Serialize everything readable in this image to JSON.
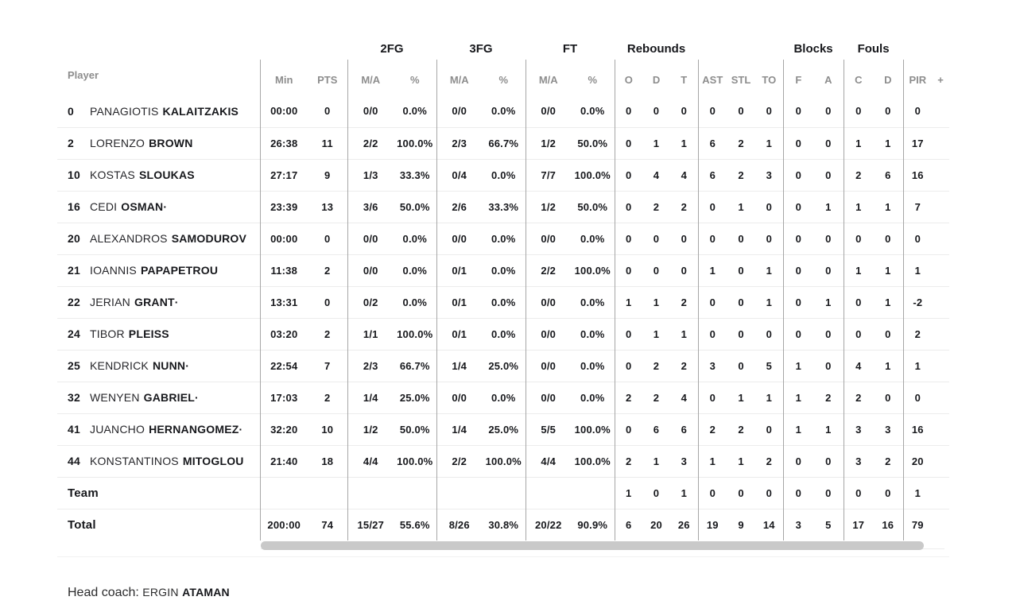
{
  "colors": {
    "bg": "#ffffff",
    "text_dark": "#17181c",
    "text_gray": "#8d8d8d",
    "line_light": "#ececec",
    "line_dark": "#a6a6a6",
    "scrollbar": "#c9c9c9"
  },
  "table": {
    "player_col_header": "Player",
    "groups": {
      "fg2": "2FG",
      "fg3": "3FG",
      "ft": "FT",
      "rebounds": "Rebounds",
      "blocks": "Blocks",
      "fouls": "Fouls"
    },
    "subheaders": {
      "min": "Min",
      "pts": "PTS",
      "ma": "M/A",
      "pct": "%",
      "o": "O",
      "d": "D",
      "t": "T",
      "ast": "AST",
      "stl": "STL",
      "to": "TO",
      "f": "F",
      "a": "A",
      "c": "C",
      "fd": "D",
      "pir": "PIR",
      "plus": "+"
    },
    "rows": [
      {
        "num": "0",
        "first": "PANAGIOTIS",
        "last": "KALAITZAKIS",
        "stats": [
          "00:00",
          "0",
          "0/0",
          "0.0%",
          "0/0",
          "0.0%",
          "0/0",
          "0.0%",
          "0",
          "0",
          "0",
          "0",
          "0",
          "0",
          "0",
          "0",
          "0",
          "0",
          "0",
          ""
        ]
      },
      {
        "num": "2",
        "first": "LORENZO",
        "last": "BROWN",
        "stats": [
          "26:38",
          "11",
          "2/2",
          "100.0%",
          "2/3",
          "66.7%",
          "1/2",
          "50.0%",
          "0",
          "1",
          "1",
          "6",
          "2",
          "1",
          "0",
          "0",
          "1",
          "1",
          "17",
          ""
        ]
      },
      {
        "num": "10",
        "first": "KOSTAS",
        "last": "SLOUKAS",
        "stats": [
          "27:17",
          "9",
          "1/3",
          "33.3%",
          "0/4",
          "0.0%",
          "7/7",
          "100.0%",
          "0",
          "4",
          "4",
          "6",
          "2",
          "3",
          "0",
          "0",
          "2",
          "6",
          "16",
          ""
        ]
      },
      {
        "num": "16",
        "first": "CEDI",
        "last": "OSMAN·",
        "stats": [
          "23:39",
          "13",
          "3/6",
          "50.0%",
          "2/6",
          "33.3%",
          "1/2",
          "50.0%",
          "0",
          "2",
          "2",
          "0",
          "1",
          "0",
          "0",
          "1",
          "1",
          "1",
          "7",
          ""
        ]
      },
      {
        "num": "20",
        "first": "ALEXANDROS",
        "last": "SAMODUROV",
        "stats": [
          "00:00",
          "0",
          "0/0",
          "0.0%",
          "0/0",
          "0.0%",
          "0/0",
          "0.0%",
          "0",
          "0",
          "0",
          "0",
          "0",
          "0",
          "0",
          "0",
          "0",
          "0",
          "0",
          ""
        ]
      },
      {
        "num": "21",
        "first": "IOANNIS",
        "last": "PAPAPETROU",
        "stats": [
          "11:38",
          "2",
          "0/0",
          "0.0%",
          "0/1",
          "0.0%",
          "2/2",
          "100.0%",
          "0",
          "0",
          "0",
          "1",
          "0",
          "1",
          "0",
          "0",
          "1",
          "1",
          "1",
          ""
        ]
      },
      {
        "num": "22",
        "first": "JERIAN",
        "last": "GRANT·",
        "stats": [
          "13:31",
          "0",
          "0/2",
          "0.0%",
          "0/1",
          "0.0%",
          "0/0",
          "0.0%",
          "1",
          "1",
          "2",
          "0",
          "0",
          "1",
          "0",
          "1",
          "0",
          "1",
          "-2",
          ""
        ]
      },
      {
        "num": "24",
        "first": "TIBOR",
        "last": "PLEISS",
        "stats": [
          "03:20",
          "2",
          "1/1",
          "100.0%",
          "0/1",
          "0.0%",
          "0/0",
          "0.0%",
          "0",
          "1",
          "1",
          "0",
          "0",
          "0",
          "0",
          "0",
          "0",
          "0",
          "2",
          ""
        ]
      },
      {
        "num": "25",
        "first": "KENDRICK",
        "last": "NUNN·",
        "stats": [
          "22:54",
          "7",
          "2/3",
          "66.7%",
          "1/4",
          "25.0%",
          "0/0",
          "0.0%",
          "0",
          "2",
          "2",
          "3",
          "0",
          "5",
          "1",
          "0",
          "4",
          "1",
          "1",
          ""
        ]
      },
      {
        "num": "32",
        "first": "WENYEN",
        "last": "GABRIEL·",
        "stats": [
          "17:03",
          "2",
          "1/4",
          "25.0%",
          "0/0",
          "0.0%",
          "0/0",
          "0.0%",
          "2",
          "2",
          "4",
          "0",
          "1",
          "1",
          "1",
          "2",
          "2",
          "0",
          "0",
          ""
        ]
      },
      {
        "num": "41",
        "first": "JUANCHO",
        "last": "HERNANGOMEZ·",
        "stats": [
          "32:20",
          "10",
          "1/2",
          "50.0%",
          "1/4",
          "25.0%",
          "5/5",
          "100.0%",
          "0",
          "6",
          "6",
          "2",
          "2",
          "0",
          "1",
          "1",
          "3",
          "3",
          "16",
          ""
        ]
      },
      {
        "num": "44",
        "first": "KONSTANTINOS",
        "last": "MITOGLOU",
        "stats": [
          "21:40",
          "18",
          "4/4",
          "100.0%",
          "2/2",
          "100.0%",
          "4/4",
          "100.0%",
          "2",
          "1",
          "3",
          "1",
          "1",
          "2",
          "0",
          "0",
          "3",
          "2",
          "20",
          ""
        ]
      }
    ],
    "team_row": {
      "label": "Team",
      "stats": [
        "",
        "",
        "",
        "",
        "",
        "",
        "",
        "",
        "1",
        "0",
        "1",
        "0",
        "0",
        "0",
        "0",
        "0",
        "0",
        "0",
        "1",
        ""
      ]
    },
    "total_row": {
      "label": "Total",
      "stats": [
        "200:00",
        "74",
        "15/27",
        "55.6%",
        "8/26",
        "30.8%",
        "20/22",
        "90.9%",
        "6",
        "20",
        "26",
        "19",
        "9",
        "14",
        "3",
        "5",
        "17",
        "16",
        "79",
        ""
      ]
    }
  },
  "footer": {
    "head_coach_label": "Head coach:",
    "coach_first": "ERGIN",
    "coach_last": "ATAMAN"
  }
}
